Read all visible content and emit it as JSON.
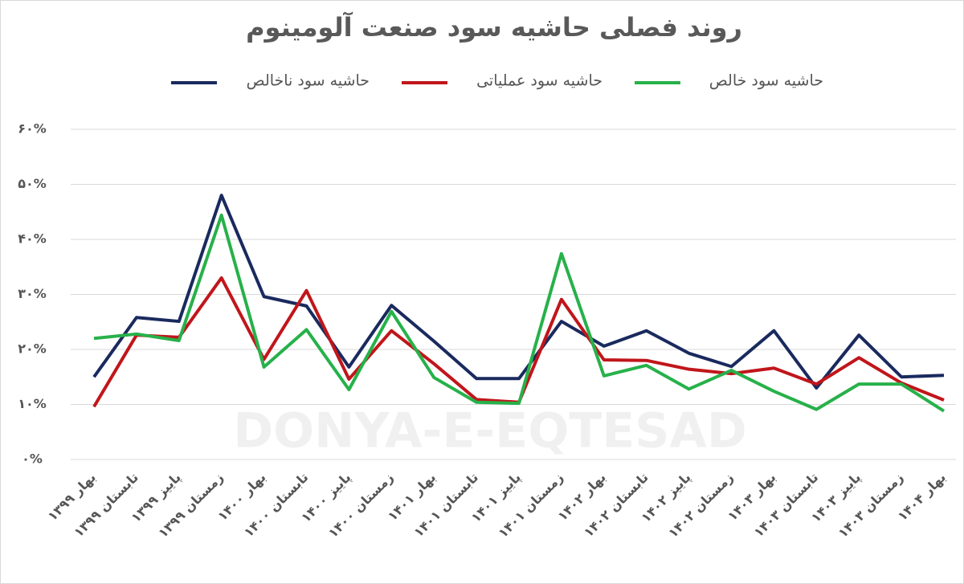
{
  "chart_data": {
    "type": "line",
    "title": "روند فصلی حاشیه سود صنعت آلومینوم",
    "watermark": "DONYA-E-EQTESAD",
    "categories": [
      "بهار ۱۳۹۹",
      "تابستان ۱۳۹۹",
      "پاییز ۱۳۹۹",
      "زمستان ۱۳۹۹",
      "بهار ۱۴۰۰",
      "تابستان ۱۴۰۰",
      "پاییز ۱۴۰۰",
      "زمستان ۱۴۰۰",
      "بهار ۱۴۰۱",
      "تابستان ۱۴۰۱",
      "پاییز ۱۴۰۱",
      "زمستان ۱۴۰۱",
      "بهار ۱۴۰۲",
      "تابستان ۱۴۰۲",
      "پاییز ۱۴۰۲",
      "زمستان ۱۴۰۲",
      "بهار ۱۴۰۳",
      "تابستان ۱۴۰۳",
      "پاییز ۱۴۰۳",
      "زمستان ۱۴۰۳",
      "بهار ۱۴۰۴"
    ],
    "series": [
      {
        "name": "حاشیه سود ناخالص",
        "color": "#1a2a5e",
        "values": [
          15.0,
          25.8,
          25.1,
          48.0,
          29.6,
          27.9,
          16.8,
          28.0,
          21.5,
          14.7,
          14.7,
          25.1,
          20.6,
          23.4,
          19.3,
          16.9,
          23.4,
          13.0,
          22.6,
          15.0,
          15.3
        ]
      },
      {
        "name": "حاشیه سود عملیاتی",
        "color": "#c0161b",
        "values": [
          9.6,
          22.6,
          22.2,
          33.0,
          18.2,
          30.7,
          14.6,
          23.4,
          17.4,
          10.9,
          10.4,
          29.1,
          18.1,
          18.0,
          16.4,
          15.6,
          16.6,
          13.7,
          18.5,
          13.9,
          10.8
        ]
      },
      {
        "name": "حاشیه سود خالص",
        "color": "#27b14a",
        "values": [
          22.0,
          22.8,
          21.6,
          44.4,
          16.8,
          23.6,
          12.7,
          26.9,
          14.9,
          10.4,
          10.2,
          37.4,
          15.2,
          17.1,
          12.8,
          16.2,
          12.4,
          9.1,
          13.7,
          13.7,
          8.8
        ]
      }
    ],
    "ylim": [
      0,
      60
    ],
    "yticks": [
      {
        "value": 0,
        "label": "۰%"
      },
      {
        "value": 10,
        "label": "۱۰%"
      },
      {
        "value": 20,
        "label": "۲۰%"
      },
      {
        "value": 30,
        "label": "۳۰%"
      },
      {
        "value": 40,
        "label": "۴۰%"
      },
      {
        "value": 50,
        "label": "۵۰%"
      },
      {
        "value": 60,
        "label": "۶۰%"
      }
    ],
    "grid": true
  }
}
